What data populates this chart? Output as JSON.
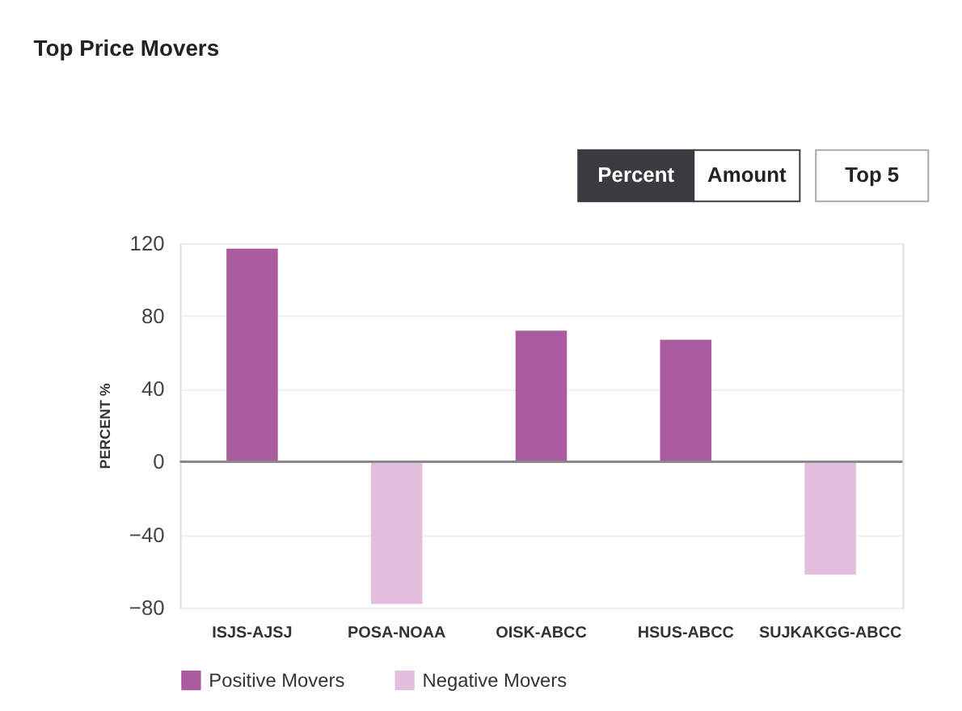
{
  "chart_data": {
    "type": "bar",
    "title": "Top Price Movers",
    "ylabel": "PERCENT %",
    "categories": [
      "ISJS-AJSJ",
      "POSA-NOAA",
      "OISK-ABCC",
      "HSUS-ABCC",
      "SUJKAKGG-ABCC"
    ],
    "series": [
      {
        "name": "Positive Movers",
        "color": "#ab5c9f",
        "values": [
          117,
          null,
          72,
          67,
          null
        ]
      },
      {
        "name": "Negative Movers",
        "color": "#e3bfdd",
        "values": [
          null,
          -78,
          null,
          null,
          -62
        ]
      }
    ],
    "ylim": [
      -80,
      120
    ],
    "yticks": [
      -80,
      -40,
      0,
      40,
      80,
      120
    ],
    "grid": "y",
    "legend": "bottom",
    "annotations": [
      "Percent",
      "Amount",
      "Top  5"
    ]
  }
}
